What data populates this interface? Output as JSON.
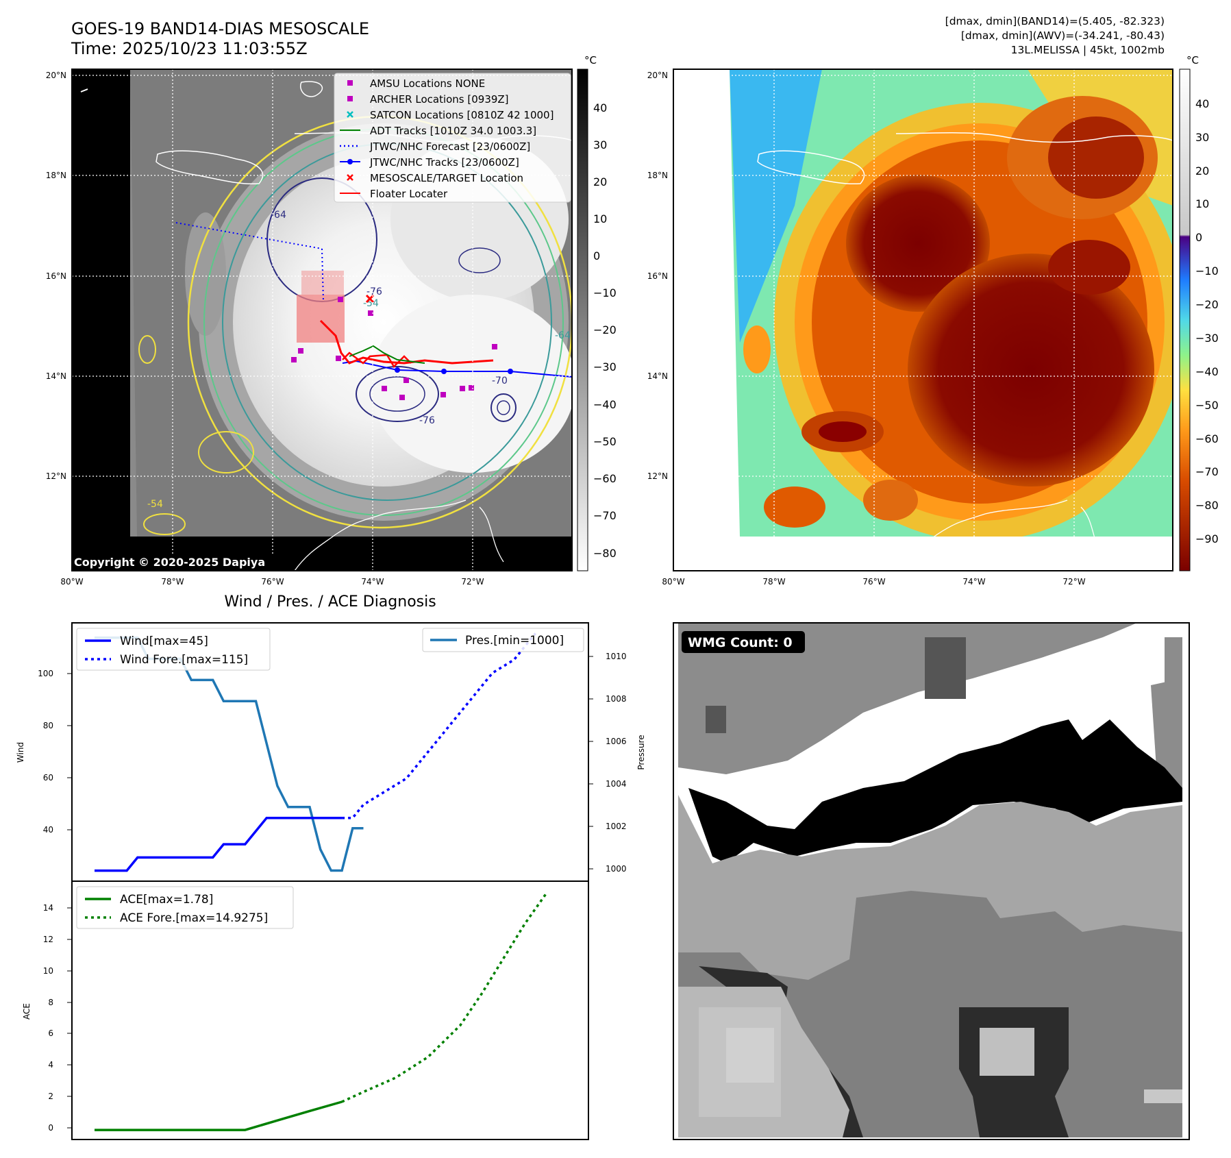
{
  "header": {
    "title_line1": "GOES-19 BAND14-DIAS MESOSCALE",
    "title_line2": "Time: 2025/10/23 11:03:55Z",
    "info_line1": "[dmax, dmin](BAND14)=(5.405, -82.323)",
    "info_line2": "[dmax, dmin](AWV)=(-34.241, -80.43)",
    "info_line3": "13L.MELISSA | 45kt, 1002mb"
  },
  "map": {
    "lat_labels": [
      "20°N",
      "18°N",
      "16°N",
      "14°N",
      "12°N"
    ],
    "lon_labels": [
      "80°W",
      "78°W",
      "76°W",
      "74°W",
      "72°W"
    ],
    "copyright": "Copyright © 2020-2025 Dapiya",
    "contour_labels": [
      "-64",
      "-54",
      "-76",
      "-64",
      "-70",
      "-76",
      "-54"
    ],
    "legend": [
      {
        "label": "AMSU Locations NONE",
        "marker": "square",
        "color": "#bf00bf"
      },
      {
        "label": "ARCHER Locations [0939Z]",
        "marker": "square",
        "color": "#bf00bf"
      },
      {
        "label": "SATCON Locations [0810Z 42 1000]",
        "marker": "x",
        "color": "#00bfbf"
      },
      {
        "label": "ADT Tracks [1010Z 34.0 1003.3]",
        "marker": "line",
        "color": "#008000"
      },
      {
        "label": "JTWC/NHC Forecast [23/0600Z]",
        "marker": "dotted",
        "color": "#0000ff"
      },
      {
        "label": "JTWC/NHC Tracks [23/0600Z]",
        "marker": "dotline",
        "color": "#0000ff"
      },
      {
        "label": "MESOSCALE/TARGET Location",
        "marker": "x",
        "color": "#ff0000"
      },
      {
        "label": "Floater Locater",
        "marker": "line",
        "color": "#ff0000"
      }
    ]
  },
  "colorbar_left": {
    "unit": "°C",
    "ticks": [
      "40",
      "30",
      "20",
      "10",
      "0",
      "−10",
      "−20",
      "−30",
      "−40",
      "−50",
      "−60",
      "−70",
      "−80"
    ]
  },
  "colorbar_right": {
    "unit": "°C",
    "ticks": [
      "40",
      "30",
      "20",
      "10",
      "0",
      "−10",
      "−20",
      "−30",
      "−40",
      "−50",
      "−60",
      "−70",
      "−80",
      "−90"
    ]
  },
  "diag": {
    "title": "Wind / Pres. / ACE Diagnosis",
    "wind_ylabel": "Wind",
    "pres_ylabel": "Pressure",
    "ace_ylabel": "ACE",
    "wind_ticks": [
      "100",
      "80",
      "60",
      "40"
    ],
    "pres_ticks": [
      "1010",
      "1008",
      "1006",
      "1004",
      "1002",
      "1000"
    ],
    "ace_ticks": [
      "14",
      "12",
      "10",
      "8",
      "6",
      "4",
      "2",
      "0"
    ],
    "legend_wind": "Wind[max=45]",
    "legend_wind_fore": "Wind Fore.[max=115]",
    "legend_pres": "Pres.[min=1000]",
    "legend_ace": "ACE[max=1.78]",
    "legend_ace_fore": "ACE Fore.[max=14.9275]"
  },
  "wmg": {
    "label": "WMG Count: 0"
  },
  "colors": {
    "wind": "#0000ff",
    "pres": "#1f77b4",
    "ace": "#008000",
    "contour_yellow": "#f0e040",
    "contour_green": "#5cc88a",
    "contour_teal": "#3a9a9a",
    "contour_navy": "#2a2a80"
  },
  "chart_data": [
    {
      "type": "line",
      "title": "Wind / Pres. / ACE Diagnosis",
      "ylabel": "Wind",
      "ylim": [
        21,
        119
      ],
      "series": [
        {
          "name": "Wind[max=45]",
          "x": [
            0,
            3,
            4,
            11,
            12,
            14,
            16,
            23
          ],
          "values": [
            25,
            25,
            30,
            30,
            35,
            35,
            45,
            45
          ]
        },
        {
          "name": "Wind Fore.[max=115]",
          "x": [
            23,
            24,
            25,
            27,
            29,
            31,
            32,
            33,
            35,
            36,
            37,
            39,
            40,
            41
          ],
          "values": [
            45,
            45,
            50,
            55,
            60,
            70,
            75,
            80,
            90,
            95,
            100,
            105,
            110,
            115
          ]
        }
      ]
    },
    {
      "type": "line",
      "ylabel": "Pressure",
      "ylim": [
        999.5,
        1011.7
      ],
      "series": [
        {
          "name": "Pres.[min=1000]",
          "x": [
            0,
            4,
            5,
            8,
            9,
            11,
            12,
            15,
            17,
            18,
            20,
            21,
            22,
            23,
            24,
            25
          ],
          "values": [
            1011,
            1011,
            1010,
            1010,
            1009,
            1009,
            1008,
            1008,
            1004,
            1003,
            1003,
            1001,
            1000,
            1000,
            1002,
            1002
          ]
        }
      ]
    },
    {
      "type": "line",
      "ylabel": "ACE",
      "ylim": [
        -0.6,
        15.7
      ],
      "ticks": [
        0,
        2,
        4,
        6,
        8,
        10,
        12,
        14
      ],
      "series": [
        {
          "name": "ACE[max=1.78]",
          "x": [
            0,
            14,
            17,
            20,
            23
          ],
          "values": [
            0,
            0,
            0.6,
            1.2,
            1.78
          ]
        },
        {
          "name": "ACE Fore.[max=14.9275]",
          "x": [
            23,
            25,
            28,
            31,
            34,
            36,
            38,
            40,
            42
          ],
          "values": [
            1.78,
            2.4,
            3.3,
            4.6,
            6.6,
            8.6,
            10.8,
            13.0,
            14.9275
          ]
        }
      ]
    }
  ]
}
